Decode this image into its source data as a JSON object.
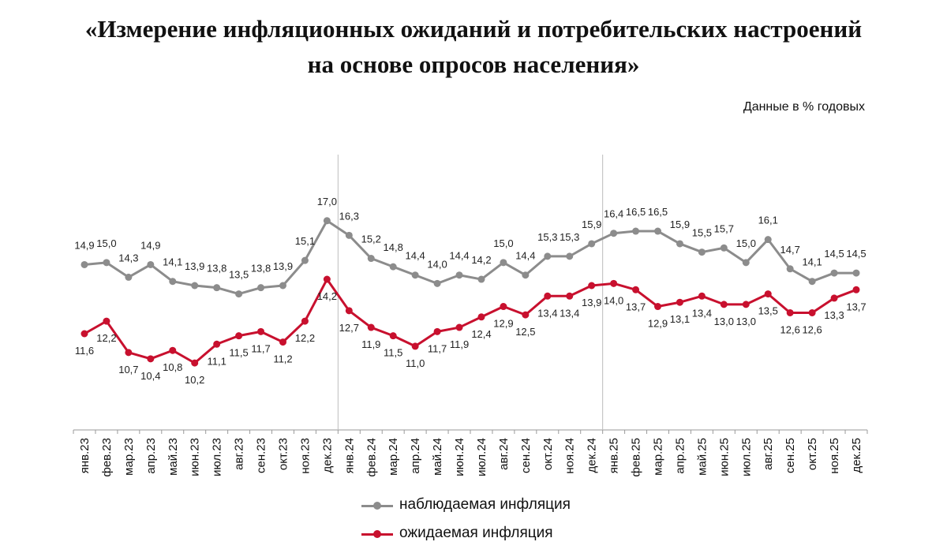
{
  "title": {
    "line1": "«Измерение инфляционных ожиданий и потребительских настроений",
    "line2": "на основе опросов населения»"
  },
  "unit_note": "Данные в % годовых",
  "chart_data": {
    "type": "line",
    "categories": [
      "янв.23",
      "фев.23",
      "мар.23",
      "апр.23",
      "май.23",
      "июн.23",
      "июл.23",
      "авг.23",
      "сен.23",
      "окт.23",
      "ноя.23",
      "дек.23",
      "янв.24",
      "фев.24",
      "мар.24",
      "апр.24",
      "май.24",
      "июн.24",
      "июл.24",
      "авг.24",
      "сен.24",
      "окт.24",
      "ноя.24",
      "дек.24",
      "янв.25",
      "фев.25",
      "мар.25",
      "апр.25",
      "май.25",
      "июн.25",
      "июл.25",
      "авг.25",
      "сен.25",
      "окт.25",
      "ноя.25",
      "дек.25"
    ],
    "series": [
      {
        "name": "наблюдаемая инфляция",
        "color": "#8c8c8c",
        "values": [
          14.9,
          15.0,
          14.3,
          14.9,
          14.1,
          13.9,
          13.8,
          13.5,
          13.8,
          13.9,
          15.1,
          17.0,
          16.3,
          15.2,
          14.8,
          14.4,
          14.0,
          14.4,
          14.2,
          15.0,
          14.4,
          15.3,
          15.3,
          15.9,
          16.4,
          16.5,
          16.5,
          15.9,
          15.5,
          15.7,
          15.0,
          16.1,
          14.7,
          14.1,
          14.5,
          14.5
        ],
        "labels": [
          "14,9",
          "15,0",
          "14,3",
          "14,9",
          "14,1",
          "13,9",
          "13,8",
          "13,5",
          "13,8",
          "13,9",
          "15,1",
          "17,0",
          "16,3",
          "15,2",
          "14,8",
          "14,4",
          "14,0",
          "14,4",
          "14,2",
          "15,0",
          "14,4",
          "15,3",
          "15,3",
          "15,9",
          "16,4",
          "16,5",
          "16,5",
          "15,9",
          "15,5",
          "15,7",
          "15,0",
          "16,1",
          "14,7",
          "14,1",
          "14,5",
          "14,5"
        ]
      },
      {
        "name": "ожидаемая инфляция",
        "color": "#c8102e",
        "values": [
          11.6,
          12.2,
          10.7,
          10.4,
          10.8,
          10.2,
          11.1,
          11.5,
          11.7,
          11.2,
          12.2,
          14.2,
          12.7,
          11.9,
          11.5,
          11.0,
          11.7,
          11.9,
          12.4,
          12.9,
          12.5,
          13.4,
          13.4,
          13.9,
          14.0,
          13.7,
          12.9,
          13.1,
          13.4,
          13.0,
          13.0,
          13.5,
          12.6,
          12.6,
          13.3,
          13.7
        ],
        "labels": [
          "11,6",
          "12,2",
          "10,7",
          "10,4",
          "10,8",
          "10,2",
          "11,1",
          "11,5",
          "11,7",
          "11,2",
          "12,2",
          "14,2",
          "12,7",
          "11,9",
          "11,5",
          "11,0",
          "11,7",
          "11,9",
          "12,4",
          "12,9",
          "12,5",
          "13,4",
          "13,4",
          "13,9",
          "14,0",
          "13,7",
          "12,9",
          "13,1",
          "13,4",
          "13,0",
          "13,0",
          "13,5",
          "12,6",
          "12,6",
          "13,3",
          "13,7"
        ]
      }
    ],
    "ylim": [
      7.0,
      18.5
    ],
    "year_dividers_after": [
      "дек.23",
      "дек.24"
    ],
    "grid": false,
    "legend_position": "bottom"
  }
}
